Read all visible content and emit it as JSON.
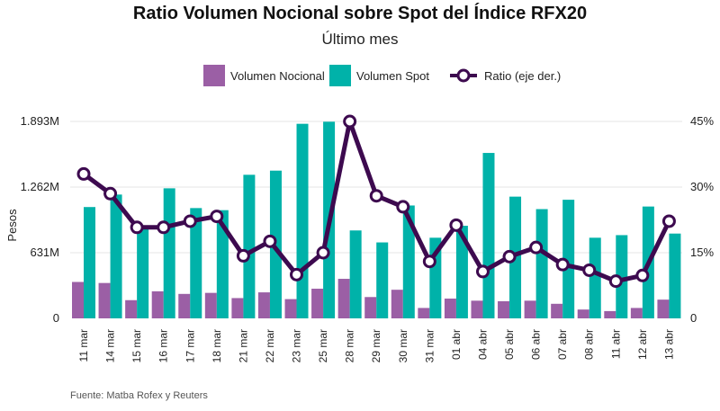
{
  "title": "Ratio Volumen Nocional sobre Spot del Índice RFX20",
  "subtitle": "Último mes",
  "source": "Fuente: Matba Rofex y Reuters",
  "colors": {
    "nocional": "#9b5fa5",
    "spot": "#00b2a9",
    "ratio": "#3d0a4f",
    "grid": "#e6e6e6"
  },
  "chart_data": {
    "type": "bar",
    "categories": [
      "11 mar",
      "14 mar",
      "15 mar",
      "16 mar",
      "17 mar",
      "18 mar",
      "21 mar",
      "22 mar",
      "23 mar",
      "25 mar",
      "28 mar",
      "29 mar",
      "30 mar",
      "31 mar",
      "01 abr",
      "04 abr",
      "05 abr",
      "06 abr",
      "07 abr",
      "08 abr",
      "11 abr",
      "12 abr",
      "13 abr"
    ],
    "ylabel": "Pesos",
    "ylim": [
      0,
      1893
    ],
    "y_ticks": [
      0,
      631,
      1262,
      1893
    ],
    "y_tick_labels": [
      "0",
      "631M",
      "1.262M",
      "1.893M"
    ],
    "y2lim": [
      0,
      45
    ],
    "y2_ticks": [
      0,
      15,
      30,
      45
    ],
    "y2_tick_labels": [
      "0",
      "15%",
      "30%",
      "45%"
    ],
    "grid": true,
    "legend_position": "top",
    "series": [
      {
        "name": "Volumen Nocional",
        "axis": "left",
        "type": "bar",
        "values": [
          350,
          340,
          175,
          260,
          235,
          245,
          195,
          250,
          185,
          285,
          380,
          205,
          275,
          100,
          190,
          170,
          165,
          170,
          140,
          85,
          70,
          100,
          180
        ]
      },
      {
        "name": "Volumen Spot",
        "axis": "left",
        "type": "bar",
        "values": [
          1070,
          1190,
          870,
          1250,
          1060,
          1040,
          1380,
          1420,
          1870,
          1890,
          845,
          730,
          1085,
          775,
          890,
          1590,
          1170,
          1050,
          1140,
          775,
          800,
          1075,
          815
        ]
      },
      {
        "name": "Ratio (eje der.)",
        "axis": "right",
        "type": "line",
        "values": [
          33.0,
          28.5,
          20.8,
          20.8,
          22.2,
          23.3,
          14.3,
          17.6,
          10.0,
          15.0,
          45.0,
          28.0,
          25.5,
          13.0,
          21.3,
          10.7,
          14.1,
          16.2,
          12.3,
          11.0,
          8.5,
          9.8,
          22.2
        ]
      }
    ]
  }
}
